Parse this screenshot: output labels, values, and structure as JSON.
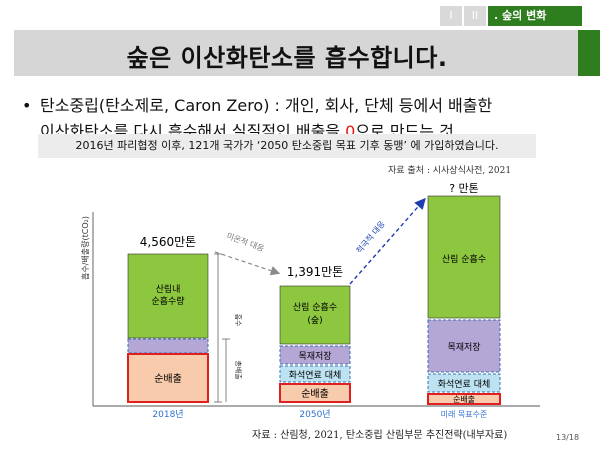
{
  "nav": {
    "tab1": "I",
    "tab2": "II",
    "active_tab": ". 숲의 변화"
  },
  "title": "숲은 이산화탄소를 흡수합니다.",
  "bullet": {
    "line1": "탄소중립(탄소제로, Caron Zero) : 개인, 회사, 단체 등에서 배출한",
    "line2_before": "이산화탄소를 다시 흡수해서 실질적인 배출을 ",
    "line2_zero": "0",
    "line2_after": "으로 만드는 것"
  },
  "notice": "2016년 파리협정 이후, 121개 국가가 ‘2050 탄소중립 목표 기후 동맹’ 에 가입하였습니다.",
  "source_top": "자료 출처 : 시사상식사전, 2021",
  "source_bottom": "자료 : 산림청, 2021, 탄소중립 산림부문 추진전략(내부자료)",
  "page_number": "13/18",
  "colors": {
    "accent_green": "#2e7d1e",
    "bar_green": "#8dc63f",
    "bar_purple": "#b4a7d6",
    "bar_lightblue": "#bde3f2",
    "bar_pink": "#f8cbad",
    "bar_red_border": "#e02020",
    "arrow_blue": "#1f3fb0"
  },
  "chart_data": {
    "type": "bar",
    "ylabel": "흡수/배출량(tCO₂)",
    "categories": [
      "2018년",
      "2050년",
      "미래 목표수준"
    ],
    "totals": [
      "4,560만톤",
      "1,391만톤",
      "? 만톤"
    ],
    "series": [
      {
        "name": "순배출",
        "labels": [
          "순배출",
          "순배출",
          "순배출"
        ]
      },
      {
        "name": "화석연료 대체",
        "labels": [
          "",
          "화석연료 대체",
          "화석연료 대체"
        ]
      },
      {
        "name": "목재저장",
        "labels": [
          "",
          "목재저장",
          "목재저장"
        ]
      },
      {
        "name": "산림 순흡수",
        "labels": [
          "산림내\n순흡수량",
          "산림 순흡수\n(숲)",
          "산림 순흡수"
        ]
      }
    ],
    "annotations": {
      "natural_response": "미온적 대응",
      "active_response": "적극적 대응",
      "total_emission": "총배출",
      "total_absorption": "흡수",
      "total_emission_side": "총배출"
    }
  }
}
